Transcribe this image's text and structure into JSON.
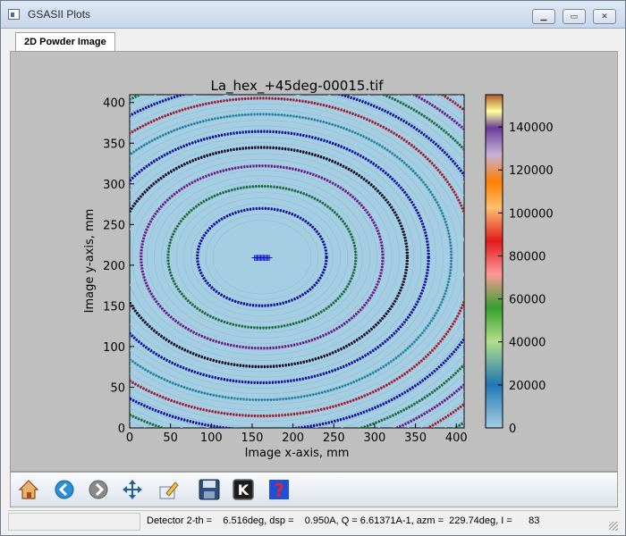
{
  "window": {
    "title": "GSASII Plots"
  },
  "tabs": [
    {
      "label": "2D Powder Image"
    }
  ],
  "toolbar": {
    "items": [
      {
        "name": "home-icon"
      },
      {
        "name": "back-icon"
      },
      {
        "name": "forward-icon"
      },
      {
        "name": "pan-icon"
      },
      {
        "name": "configure-icon"
      },
      {
        "name": "save-icon"
      },
      {
        "name": "keypress-icon"
      },
      {
        "name": "help-icon"
      }
    ]
  },
  "status": {
    "text": "Detector 2-th =    6.516deg, dsp =    0.950A, Q = 6.61371A-1, azm =  229.74deg, I =      83"
  },
  "chart_data": {
    "type": "heatmap",
    "title": "La_hex_+45deg-00015.tif",
    "xlabel": "Image x-axis, mm",
    "ylabel": "Image y-axis, mm",
    "xlim": [
      0,
      409.6
    ],
    "ylim": [
      0,
      409.6
    ],
    "xticks": [
      "0",
      "50",
      "100",
      "150",
      "200",
      "250",
      "300",
      "350",
      "400"
    ],
    "yticks": [
      "0",
      "50",
      "100",
      "150",
      "200",
      "250",
      "300",
      "350",
      "400"
    ],
    "colorbar": {
      "min": 0,
      "max": 155000,
      "ticks": [
        "0",
        "20000",
        "40000",
        "60000",
        "80000",
        "100000",
        "120000",
        "140000"
      ],
      "tick_values": [
        0,
        20000,
        40000,
        60000,
        80000,
        100000,
        120000,
        140000
      ],
      "colormap": "Paired"
    },
    "beam_center": {
      "x": 162,
      "y": 210
    },
    "rings": {
      "x_semi_axes": [
        79,
        115,
        148,
        178,
        204,
        232,
        258,
        281,
        303,
        323,
        344,
        365
      ],
      "aspect": 0.755,
      "colors": [
        "#0b0b9c",
        "#1e7b2a",
        "#7c1a86",
        "#000000",
        "#0b0b9c",
        "#2a9aa6",
        "#c01a1a",
        "#0b0b9c",
        "#1e7b2a",
        "#7c1a86",
        "#c01a1a",
        "#1e7b2a"
      ]
    },
    "image_background": "#a6cee3"
  }
}
